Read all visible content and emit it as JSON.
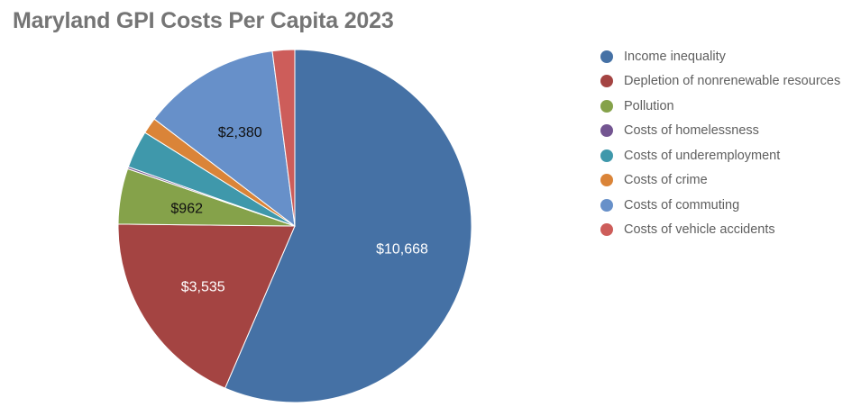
{
  "chart_data": {
    "type": "pie",
    "title": "Maryland GPI Costs Per Capita 2023",
    "slices": [
      {
        "name": "Income inequality",
        "value": 10668,
        "label": "$10,668",
        "color": "#4571a5",
        "label_color": "#ffffff"
      },
      {
        "name": "Depletion of nonrenewable resources",
        "value": 3535,
        "label": "$3,535",
        "color": "#a44442",
        "label_color": "#ffffff"
      },
      {
        "name": "Pollution",
        "value": 962,
        "label": "$962",
        "color": "#85a24a",
        "label_color": "#111111"
      },
      {
        "name": "Costs of homelessness",
        "value": 35,
        "label": "",
        "color": "#735591",
        "label_color": "#111111"
      },
      {
        "name": "Costs of underemployment",
        "value": 650,
        "label": "",
        "color": "#3f98ab",
        "label_color": "#111111"
      },
      {
        "name": "Costs of crime",
        "value": 280,
        "label": "",
        "color": "#da8438",
        "label_color": "#111111"
      },
      {
        "name": "Costs of commuting",
        "value": 2380,
        "label": "$2,380",
        "color": "#6790c9",
        "label_color": "#111111"
      },
      {
        "name": "Costs of vehicle accidents",
        "value": 385,
        "label": "",
        "color": "#cd5d5a",
        "label_color": "#111111"
      }
    ],
    "start_angle_deg": 0,
    "direction": "clockwise",
    "legend_position": "right"
  }
}
